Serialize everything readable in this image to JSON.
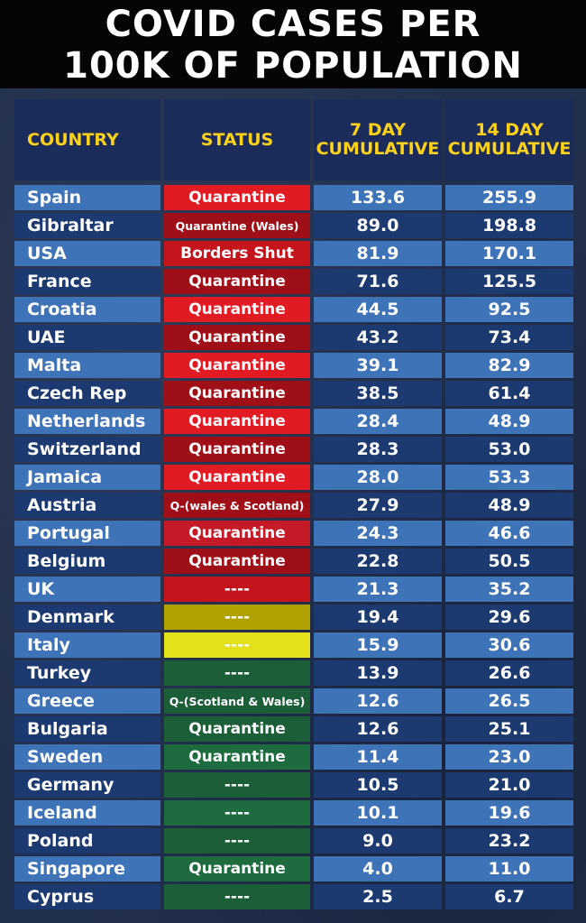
{
  "title": {
    "line1": "COVID CASES PER",
    "line2": "100K OF POPULATION"
  },
  "headers": {
    "country": "COUNTRY",
    "status": "STATUS",
    "day7_line1": "7 DAY",
    "day7_line2": "CUMULATIVE",
    "day14_line1": "14 DAY",
    "day14_line2": "CUMULATIVE"
  },
  "colors": {
    "red_bright": "#e01b24",
    "red_dark": "#9e0f17",
    "red_mid": "#c4141c",
    "olive": "#b0a000",
    "yellow": "#e3e01c",
    "green_dark": "#1b5e38",
    "green_mid": "#1d6b3e"
  },
  "rows": [
    {
      "country": "Spain",
      "status": "Quarantine",
      "d7": "133.6",
      "d14": "255.9",
      "status_color": "#e01b24"
    },
    {
      "country": "Gibraltar",
      "status": "Quarantine (Wales)",
      "d7": "89.0",
      "d14": "198.8",
      "status_color": "#9e0f17"
    },
    {
      "country": "USA",
      "status": "Borders Shut",
      "d7": "81.9",
      "d14": "170.1",
      "status_color": "#c4141c"
    },
    {
      "country": "France",
      "status": "Quarantine",
      "d7": "71.6",
      "d14": "125.5",
      "status_color": "#9e0f17"
    },
    {
      "country": "Croatia",
      "status": "Quarantine",
      "d7": "44.5",
      "d14": "92.5",
      "status_color": "#e01b24"
    },
    {
      "country": "UAE",
      "status": "Quarantine",
      "d7": "43.2",
      "d14": "73.4",
      "status_color": "#9e0f17"
    },
    {
      "country": "Malta",
      "status": "Quarantine",
      "d7": "39.1",
      "d14": "82.9",
      "status_color": "#e01b24"
    },
    {
      "country": "Czech Rep",
      "status": "Quarantine",
      "d7": "38.5",
      "d14": "61.4",
      "status_color": "#9e0f17"
    },
    {
      "country": "Netherlands",
      "status": "Quarantine",
      "d7": "28.4",
      "d14": "48.9",
      "status_color": "#e01b24"
    },
    {
      "country": "Switzerland",
      "status": "Quarantine",
      "d7": "28.3",
      "d14": "53.0",
      "status_color": "#9e0f17"
    },
    {
      "country": "Jamaica",
      "status": "Quarantine",
      "d7": "28.0",
      "d14": "53.3",
      "status_color": "#e01b24"
    },
    {
      "country": "Austria",
      "status": "Q-(wales & Scotland)",
      "d7": "27.9",
      "d14": "48.9",
      "status_color": "#9e0f17"
    },
    {
      "country": "Portugal",
      "status": "Quarantine",
      "d7": "24.3",
      "d14": "46.6",
      "status_color": "#c41a28"
    },
    {
      "country": "Belgium",
      "status": "Quarantine",
      "d7": "22.8",
      "d14": "50.5",
      "status_color": "#9e0f17"
    },
    {
      "country": "UK",
      "status": "----",
      "d7": "21.3",
      "d14": "35.2",
      "status_color": "#c4141c"
    },
    {
      "country": "Denmark",
      "status": "----",
      "d7": "19.4",
      "d14": "29.6",
      "status_color": "#b0a000"
    },
    {
      "country": "Italy",
      "status": "----",
      "d7": "15.9",
      "d14": "30.6",
      "status_color": "#e3e01c"
    },
    {
      "country": "Turkey",
      "status": "----",
      "d7": "13.9",
      "d14": "26.6",
      "status_color": "#1b5e38"
    },
    {
      "country": "Greece",
      "status": "Q-(Scotland & Wales)",
      "d7": "12.6",
      "d14": "26.5",
      "status_color": "#1b5e38"
    },
    {
      "country": "Bulgaria",
      "status": "Quarantine",
      "d7": "12.6",
      "d14": "25.1",
      "status_color": "#1b5e38"
    },
    {
      "country": "Sweden",
      "status": "Quarantine",
      "d7": "11.4",
      "d14": "23.0",
      "status_color": "#1d6b3e"
    },
    {
      "country": "Germany",
      "status": "----",
      "d7": "10.5",
      "d14": "21.0",
      "status_color": "#1b5e38"
    },
    {
      "country": "Iceland",
      "status": "----",
      "d7": "10.1",
      "d14": "19.6",
      "status_color": "#1d6b3e"
    },
    {
      "country": "Poland",
      "status": "----",
      "d7": "9.0",
      "d14": "23.2",
      "status_color": "#1b5e38"
    },
    {
      "country": "Singapore",
      "status": "Quarantine",
      "d7": "4.0",
      "d14": "11.0",
      "status_color": "#1d6b3e"
    },
    {
      "country": "Cyprus",
      "status": "----",
      "d7": "2.5",
      "d14": "6.7",
      "status_color": "#1b5e38"
    }
  ]
}
